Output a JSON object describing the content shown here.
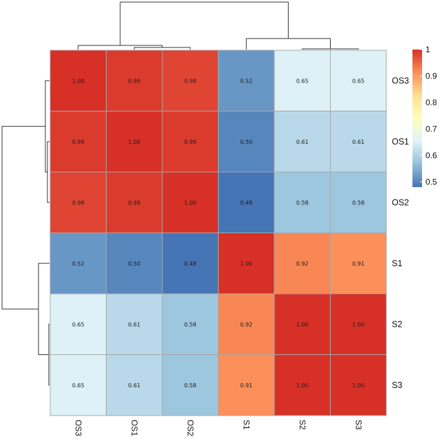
{
  "chart_data": {
    "type": "heatmap",
    "rows": [
      "OS3",
      "OS1",
      "OS2",
      "S1",
      "S2",
      "S3"
    ],
    "cols": [
      "OS3",
      "OS1",
      "OS2",
      "S1",
      "S2",
      "S3"
    ],
    "values": [
      [
        1.0,
        0.99,
        0.98,
        0.52,
        0.65,
        0.65
      ],
      [
        0.99,
        1.0,
        0.99,
        0.5,
        0.61,
        0.61
      ],
      [
        0.98,
        0.99,
        1.0,
        0.48,
        0.58,
        0.58
      ],
      [
        0.52,
        0.5,
        0.48,
        1.0,
        0.92,
        0.91
      ],
      [
        0.65,
        0.61,
        0.58,
        0.92,
        1.0,
        1.0
      ],
      [
        0.65,
        0.61,
        0.58,
        0.91,
        1.0,
        1.0
      ]
    ],
    "labels": [
      [
        "1.00",
        "0.99",
        "0.98",
        "0.52",
        "0.65",
        "0.65"
      ],
      [
        "0.99",
        "1.00",
        "0.99",
        "0.50",
        "0.61",
        "0.61"
      ],
      [
        "0.98",
        "0.99",
        "1.00",
        "0.48",
        "0.58",
        "0.58"
      ],
      [
        "0.52",
        "0.50",
        "0.48",
        "1.00",
        "0.92",
        "0.91"
      ],
      [
        "0.65",
        "0.61",
        "0.58",
        "0.92",
        "1.00",
        "1.00"
      ],
      [
        "0.65",
        "0.61",
        "0.58",
        "0.91",
        "1.00",
        "1.00"
      ]
    ],
    "color_scale": {
      "min": 0.48,
      "max": 1.0,
      "stops": [
        "#4575b4",
        "#91bfdb",
        "#e0f3f8",
        "#ffffbf",
        "#fee090",
        "#fc8d59",
        "#d73027"
      ]
    },
    "legend": {
      "ticks": [
        0.5,
        0.6,
        0.7,
        0.8,
        0.9,
        1
      ],
      "tick_labels": [
        "0.5",
        "0.6",
        "0.7",
        "0.8",
        "0.9",
        "1"
      ],
      "placement": "right"
    },
    "dendrogram": {
      "top": true,
      "left": true
    }
  }
}
